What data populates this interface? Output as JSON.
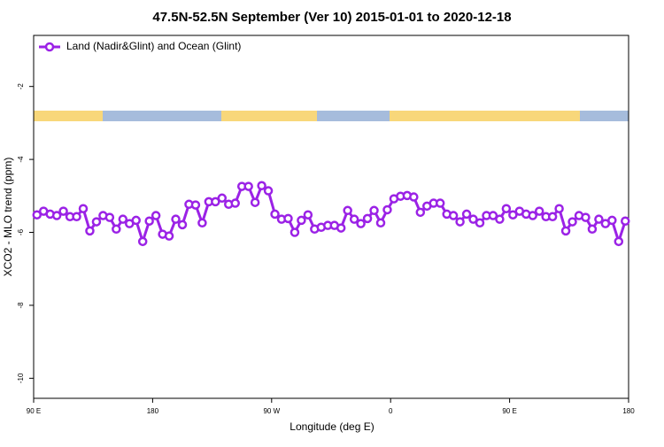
{
  "chart_data": {
    "type": "line",
    "title": "47.5N-52.5N September (Ver 10)   2015-01-01 to 2020-12-18",
    "x_label": "Longitude (deg E)",
    "y_label": "XCO2 - MLO trend (ppm)",
    "xlim": [
      90,
      540
    ],
    "ylim": [
      -10.55,
      -0.6
    ],
    "xticks": [
      {
        "value": 90,
        "label": "90 E"
      },
      {
        "value": 180,
        "label": "180"
      },
      {
        "value": 270,
        "label": "90 W"
      },
      {
        "value": 360,
        "label": "0"
      },
      {
        "value": 450,
        "label": "90 E"
      },
      {
        "value": 540,
        "label": "180"
      }
    ],
    "yticks": [
      -2,
      -4,
      -6,
      -8,
      -10
    ],
    "legend": "top-left",
    "x": [
      92.5,
      97.5,
      102.5,
      107.5,
      112.5,
      117.5,
      122.5,
      127.5,
      132.5,
      137.5,
      142.5,
      147.5,
      152.5,
      157.5,
      162.5,
      167.5,
      172.5,
      177.5,
      182.5,
      187.5,
      192.5,
      197.5,
      202.5,
      207.5,
      212.5,
      217.5,
      222.5,
      227.5,
      232.5,
      237.5,
      242.5,
      247.5,
      252.5,
      257.5,
      262.5,
      267.5,
      272.5,
      277.5,
      282.5,
      287.5,
      292.5,
      297.5,
      302.5,
      307.5,
      312.5,
      317.5,
      322.5,
      327.5,
      332.5,
      337.5,
      342.5,
      347.5,
      352.5,
      357.5,
      362.5,
      367.5,
      372.5,
      377.5,
      382.5,
      387.5,
      392.5,
      397.5,
      402.5,
      407.5,
      412.5,
      417.5,
      422.5,
      427.5,
      432.5,
      437.5,
      442.5,
      447.5,
      452.5,
      457.5,
      462.5,
      467.5,
      472.5,
      477.5,
      482.5,
      487.5,
      492.5,
      497.5,
      502.5,
      507.5,
      512.5,
      517.5,
      522.5,
      527.5,
      532.5,
      537.5
    ],
    "series": [
      {
        "name": "Land (Nadir&Glint) and Ocean (Glint)",
        "color": "#9b22e6",
        "values": [
          -5.52,
          -5.42,
          -5.5,
          -5.54,
          -5.42,
          -5.57,
          -5.57,
          -5.35,
          -5.96,
          -5.71,
          -5.54,
          -5.59,
          -5.91,
          -5.64,
          -5.76,
          -5.67,
          -6.25,
          -5.69,
          -5.54,
          -6.05,
          -6.1,
          -5.64,
          -5.79,
          -5.23,
          -5.25,
          -5.74,
          -5.16,
          -5.16,
          -5.06,
          -5.23,
          -5.2,
          -4.74,
          -4.74,
          -5.18,
          -4.72,
          -4.86,
          -5.5,
          -5.64,
          -5.62,
          -6.0,
          -5.67,
          -5.52,
          -5.91,
          -5.86,
          -5.81,
          -5.81,
          -5.88,
          -5.4,
          -5.64,
          -5.76,
          -5.62,
          -5.4,
          -5.74,
          -5.38,
          -5.08,
          -5.01,
          -4.99,
          -5.03,
          -5.45,
          -5.28,
          -5.2,
          -5.2,
          -5.5,
          -5.54,
          -5.71,
          -5.5,
          -5.64,
          -5.74,
          -5.54,
          -5.54,
          -5.64,
          -5.35,
          -5.52,
          -5.42,
          -5.5,
          -5.54,
          -5.42,
          -5.57,
          -5.57,
          -5.35,
          -5.96,
          -5.71,
          -5.54,
          -5.59,
          -5.91,
          -5.64,
          -5.76,
          -5.67,
          -6.25,
          -5.69
        ]
      }
    ]
  }
}
